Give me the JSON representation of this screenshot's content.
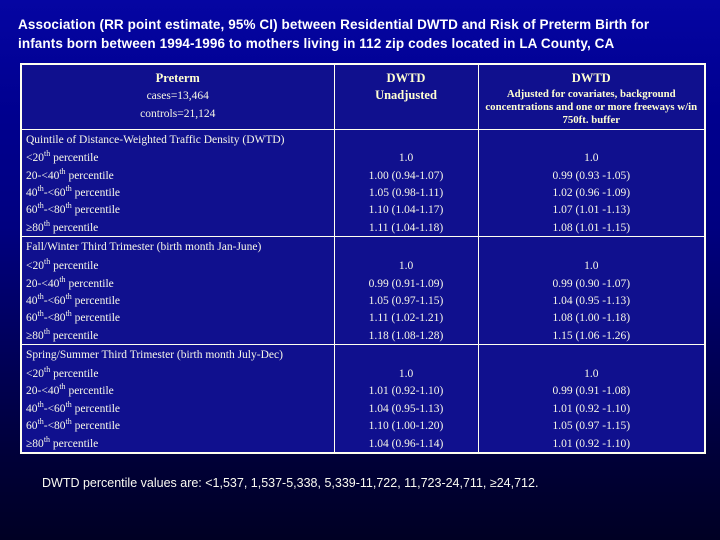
{
  "title": {
    "line1": "Association (RR point estimate, 95% CI) between Residential DWTD and Risk of Preterm Birth for",
    "line2": "infants born between 1994-1996 to mothers living in 112 zip codes located in LA County, CA"
  },
  "table": {
    "header": {
      "preterm": {
        "title": "Preterm",
        "cases": "cases=13,464",
        "controls": "controls=21,124"
      },
      "unadjusted": {
        "title": "DWTD",
        "subtitle": "Unadjusted"
      },
      "adjusted": {
        "title": "DWTD",
        "subtitle": "Adjusted for covariates, background concentrations and one or more freeways w/in 750ft. buffer"
      }
    },
    "sections": [
      {
        "title": "Quintile of Distance-Weighted Traffic Density (DWTD)",
        "rows": [
          {
            "label": [
              {
                "t": "<20"
              },
              {
                "t": "th",
                "sup": true
              },
              {
                "t": " percentile"
              }
            ],
            "unadjusted": "1.0",
            "adjusted": "1.0"
          },
          {
            "label": [
              {
                "t": "20-<40"
              },
              {
                "t": "th",
                "sup": true
              },
              {
                "t": " percentile"
              }
            ],
            "unadjusted": "1.00 (0.94-1.07)",
            "adjusted": "0.99 (0.93 -1.05)"
          },
          {
            "label": [
              {
                "t": "40"
              },
              {
                "t": "th",
                "sup": true
              },
              {
                "t": "-<60"
              },
              {
                "t": "th",
                "sup": true
              },
              {
                "t": " percentile"
              }
            ],
            "unadjusted": "1.05 (0.98-1.11)",
            "adjusted": "1.02 (0.96 -1.09)"
          },
          {
            "label": [
              {
                "t": "60"
              },
              {
                "t": "th",
                "sup": true
              },
              {
                "t": "-<80"
              },
              {
                "t": "th",
                "sup": true
              },
              {
                "t": " percentile"
              }
            ],
            "unadjusted": "1.10 (1.04-1.17)",
            "adjusted": "1.07 (1.01 -1.13)"
          },
          {
            "label": [
              {
                "t": "≥80"
              },
              {
                "t": "th",
                "sup": true
              },
              {
                "t": " percentile"
              }
            ],
            "unadjusted": "1.11 (1.04-1.18)",
            "adjusted": "1.08 (1.01 -1.15)"
          }
        ]
      },
      {
        "title": "Fall/Winter Third Trimester (birth month Jan-June)",
        "rows": [
          {
            "label": [
              {
                "t": "<20"
              },
              {
                "t": "th",
                "sup": true
              },
              {
                "t": " percentile"
              }
            ],
            "unadjusted": "1.0",
            "adjusted": "1.0"
          },
          {
            "label": [
              {
                "t": "20-<40"
              },
              {
                "t": "th",
                "sup": true
              },
              {
                "t": " percentile"
              }
            ],
            "unadjusted": "0.99 (0.91-1.09)",
            "adjusted": "0.99 (0.90 -1.07)"
          },
          {
            "label": [
              {
                "t": "40"
              },
              {
                "t": "th",
                "sup": true
              },
              {
                "t": "-<60"
              },
              {
                "t": "th",
                "sup": true
              },
              {
                "t": " percentile"
              }
            ],
            "unadjusted": "1.05 (0.97-1.15)",
            "adjusted": "1.04 (0.95 -1.13)"
          },
          {
            "label": [
              {
                "t": "60"
              },
              {
                "t": "th",
                "sup": true
              },
              {
                "t": "-<80"
              },
              {
                "t": "th",
                "sup": true
              },
              {
                "t": " percentile"
              }
            ],
            "unadjusted": "1.11 (1.02-1.21)",
            "adjusted": "1.08 (1.00 -1.18)"
          },
          {
            "label": [
              {
                "t": "≥80"
              },
              {
                "t": "th",
                "sup": true
              },
              {
                "t": " percentile"
              }
            ],
            "unadjusted": "1.18 (1.08-1.28)",
            "adjusted": "1.15 (1.06 -1.26)"
          }
        ]
      },
      {
        "title": "Spring/Summer Third Trimester (birth month July-Dec)",
        "rows": [
          {
            "label": [
              {
                "t": "<20"
              },
              {
                "t": "th",
                "sup": true
              },
              {
                "t": " percentile"
              }
            ],
            "unadjusted": "1.0",
            "adjusted": "1.0"
          },
          {
            "label": [
              {
                "t": "20-<40"
              },
              {
                "t": "th",
                "sup": true
              },
              {
                "t": " percentile"
              }
            ],
            "unadjusted": "1.01 (0.92-1.10)",
            "adjusted": "0.99 (0.91 -1.08)"
          },
          {
            "label": [
              {
                "t": "40"
              },
              {
                "t": "th",
                "sup": true
              },
              {
                "t": "-<60"
              },
              {
                "t": "th",
                "sup": true
              },
              {
                "t": " percentile"
              }
            ],
            "unadjusted": "1.04 (0.95-1.13)",
            "adjusted": "1.01 (0.92 -1.10)"
          },
          {
            "label": [
              {
                "t": "60"
              },
              {
                "t": "th",
                "sup": true
              },
              {
                "t": "-<80"
              },
              {
                "t": "th",
                "sup": true
              },
              {
                "t": " percentile"
              }
            ],
            "unadjusted": "1.10 (1.00-1.20)",
            "adjusted": "1.05 (0.97 -1.15)"
          },
          {
            "label": [
              {
                "t": "≥80"
              },
              {
                "t": "th",
                "sup": true
              },
              {
                "t": " percentile"
              }
            ],
            "unadjusted": "1.04 (0.96-1.14)",
            "adjusted": "1.01 (0.92 -1.10)"
          }
        ]
      }
    ]
  },
  "footnote": "DWTD percentile values are: <1,537, 1,537-5,338, 5,339-11,722, 11,723-24,711, ≥24,712.",
  "colors": {
    "slide_background_top": "#0505a2",
    "slide_background_bottom": "#000024",
    "table_background": "#10108e",
    "table_border": "#fffff0",
    "header_text": "#ffffd2",
    "body_text": "#f8f8e8",
    "title_text": "#ffffff"
  }
}
